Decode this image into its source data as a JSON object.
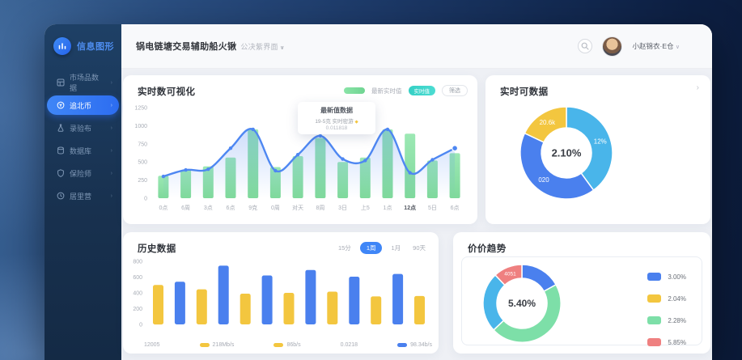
{
  "app": {
    "logo_text": "信息图形"
  },
  "header": {
    "title_bold": "锅电链塘交易辅助船火锹",
    "title_light": "公决紫界面",
    "title_caret": "∨",
    "user_name": "小赵锦衣·E仓",
    "user_caret": "∨"
  },
  "sidebar": {
    "items": [
      {
        "label": "市场品数据",
        "icon": "grid",
        "active": false
      },
      {
        "label": "追北币",
        "icon": "coin",
        "active": true
      },
      {
        "label": "录验布",
        "icon": "flask",
        "active": false
      },
      {
        "label": "数据库",
        "icon": "db",
        "active": false
      },
      {
        "label": "保险师",
        "icon": "shield",
        "active": false
      },
      {
        "label": "居里营",
        "icon": "clock",
        "active": false
      }
    ]
  },
  "panels": {
    "realtime": {
      "title": "实时数可视化",
      "legend_line_label": "最新实时值",
      "legend_pill_label": "实时值",
      "filter_button": "筛选",
      "tooltip": {
        "line1": "最新值数据",
        "line2": "19-5克 实时密游",
        "marker": "◆",
        "line3": "0.011818"
      }
    },
    "realtime_donut": {
      "title": "实时可数据",
      "caret": "›"
    },
    "history": {
      "title": "历史数据",
      "range_options": [
        {
          "label": "15分",
          "active": false
        },
        {
          "label": "1周",
          "active": true
        },
        {
          "label": "1月",
          "active": false
        },
        {
          "label": "90天",
          "active": false
        }
      ]
    },
    "price": {
      "title": "价价趋势"
    }
  },
  "colors": {
    "blue": "#4a80ee",
    "lightblue": "#49b5ea",
    "yellow": "#f3c63f",
    "green": "#7fdd9f",
    "mint": "#7ddfa8",
    "red": "#ef8080",
    "line": "#4e87f2",
    "bar_green_top": "#97e7b0",
    "bar_green_bot": "#78d796",
    "axis_text": "#a8adb6"
  },
  "chart_data": [
    {
      "type": "bar+line",
      "title": "实时数可视化",
      "categories": [
        "0点",
        "6周",
        "3点",
        "6点",
        "9克",
        "0周",
        "对天",
        "8周",
        "3日",
        "上5",
        "1点",
        "12点",
        "5日",
        "6点"
      ],
      "bold_category_index": 11,
      "series": [
        {
          "name": "最新实时值",
          "type": "bar",
          "values": [
            310,
            390,
            440,
            560,
            950,
            430,
            580,
            830,
            500,
            560,
            950,
            890,
            520,
            620
          ]
        },
        {
          "name": "实时值",
          "type": "line",
          "values": [
            300,
            390,
            400,
            690,
            950,
            380,
            600,
            860,
            540,
            520,
            950,
            350,
            530,
            690
          ]
        }
      ],
      "ylim": [
        0,
        1250
      ],
      "yticks": [
        0,
        250,
        500,
        750,
        1000,
        1250
      ],
      "grid": false,
      "legend_position": "top-right"
    },
    {
      "type": "pie",
      "title": "实时可数据",
      "center_label": "2.10%",
      "slices": [
        {
          "label": "12%",
          "value": 40,
          "color": "lightblue"
        },
        {
          "label": "020",
          "value": 42,
          "color": "blue"
        },
        {
          "label": "20.6k",
          "value": 18,
          "color": "yellow"
        }
      ]
    },
    {
      "type": "bar",
      "title": "历史数据",
      "values": [
        500,
        540,
        445,
        745,
        390,
        620,
        400,
        690,
        415,
        605,
        355,
        640,
        360
      ],
      "bar_colors_alternate": [
        "yellow",
        "blue"
      ],
      "ylim": [
        0,
        800
      ],
      "yticks": [
        0,
        200,
        400,
        600,
        800
      ],
      "grid": false,
      "legend": [
        {
          "label": "12005",
          "swatch": null
        },
        {
          "label": "218Mb/s",
          "swatch": "yellow"
        },
        {
          "label": "86b/s",
          "swatch": "yellow"
        },
        {
          "label": "0.0218",
          "swatch": null
        },
        {
          "label": "98.34b/s",
          "swatch": "blue"
        }
      ]
    },
    {
      "type": "pie",
      "title": "价价趋势",
      "center_label": "5.40%",
      "slices": [
        {
          "label": "",
          "value": 17,
          "color": "blue"
        },
        {
          "label": "",
          "value": 46,
          "color": "mint"
        },
        {
          "label": "",
          "value": 25,
          "color": "lightblue"
        },
        {
          "label": "4051",
          "value": 12,
          "color": "red"
        }
      ],
      "legend": [
        {
          "label": "3.00%",
          "swatch": "blue"
        },
        {
          "label": "2.04%",
          "swatch": "yellow"
        },
        {
          "label": "2.28%",
          "swatch": "mint"
        },
        {
          "label": "5.85%",
          "swatch": "red"
        }
      ],
      "legend_position": "right"
    }
  ]
}
